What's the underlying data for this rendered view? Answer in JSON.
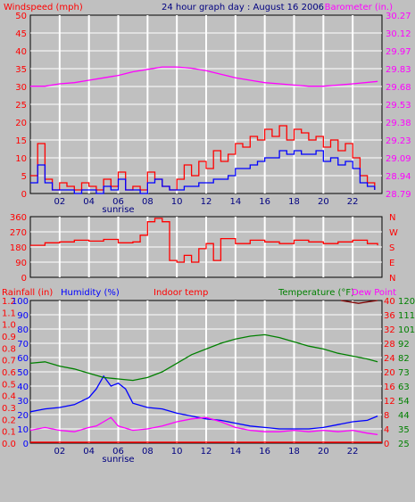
{
  "header": {
    "left_title": "Windspeed (mph)",
    "center_title": "24 hour graph day : August 16 2006",
    "right_title": "Barometer (in.)"
  },
  "colors": {
    "background": "#c0c0c0",
    "grid": "#ffffff",
    "wind": "#ff0000",
    "wind_avg": "#0000ff",
    "barometer": "#ff00ff",
    "humidity": "#0000ff",
    "indoor": "#ff00ff",
    "temperature": "#008000",
    "dewpoint": "#800000",
    "rain": "#ff0000"
  },
  "x_ticks": [
    "02",
    "04",
    "06",
    "08",
    "10",
    "12",
    "14",
    "16",
    "18",
    "20",
    "22"
  ],
  "sunrise_label": "sunrise",
  "chart_data": [
    {
      "type": "line",
      "ylim_left": [
        0,
        50
      ],
      "ylim_right": [
        28.79,
        30.27
      ],
      "y_ticks_left": [
        "50",
        "45",
        "40",
        "35",
        "30",
        "25",
        "20",
        "15",
        "10",
        "5",
        "0"
      ],
      "y_ticks_right": [
        "30.27",
        "30.12",
        "29.97",
        "29.83",
        "29.68",
        "29.53",
        "29.38",
        "29.23",
        "29.09",
        "28.94",
        "28.79"
      ],
      "series": [
        {
          "name": "Windspeed (mph)",
          "axis": "left",
          "x": [
            0,
            0.5,
            1,
            1.5,
            2,
            2.5,
            3,
            3.5,
            4,
            4.5,
            5,
            5.5,
            6,
            6.5,
            7,
            7.5,
            8,
            8.5,
            9,
            9.5,
            10,
            10.5,
            11,
            11.5,
            12,
            12.5,
            13,
            13.5,
            14,
            14.5,
            15,
            15.5,
            16,
            16.5,
            17,
            17.5,
            18,
            18.5,
            19,
            19.5,
            20,
            20.5,
            21,
            21.5,
            22,
            22.5,
            23,
            23.5
          ],
          "y": [
            5,
            14,
            4,
            1,
            3,
            2,
            1,
            3,
            2,
            1,
            4,
            2,
            6,
            1,
            2,
            1,
            6,
            4,
            2,
            1,
            4,
            8,
            5,
            9,
            7,
            12,
            9,
            11,
            14,
            13,
            16,
            15,
            18,
            16,
            19,
            15,
            18,
            17,
            15,
            16,
            13,
            15,
            12,
            14,
            10,
            5,
            3,
            1
          ]
        },
        {
          "name": "Average windspeed",
          "axis": "left",
          "x": [
            0,
            0.5,
            1,
            1.5,
            2,
            2.5,
            3,
            3.5,
            4,
            4.5,
            5,
            5.5,
            6,
            6.5,
            7,
            7.5,
            8,
            8.5,
            9,
            9.5,
            10,
            10.5,
            11,
            11.5,
            12,
            12.5,
            13,
            13.5,
            14,
            14.5,
            15,
            15.5,
            16,
            16.5,
            17,
            17.5,
            18,
            18.5,
            19,
            19.5,
            20,
            20.5,
            21,
            21.5,
            22,
            22.5,
            23,
            23.5
          ],
          "y": [
            3,
            8,
            3,
            1,
            1,
            1,
            0,
            1,
            1,
            0,
            2,
            1,
            4,
            1,
            1,
            0,
            3,
            4,
            2,
            1,
            1,
            2,
            2,
            3,
            3,
            4,
            4,
            5,
            7,
            7,
            8,
            9,
            10,
            10,
            12,
            11,
            12,
            11,
            11,
            12,
            9,
            10,
            8,
            9,
            7,
            3,
            2,
            1
          ]
        },
        {
          "name": "Barometer (in.)",
          "axis": "right",
          "x": [
            0,
            1,
            2,
            3,
            4,
            5,
            6,
            7,
            8,
            9,
            10,
            11,
            12,
            13,
            14,
            15,
            16,
            17,
            18,
            19,
            20,
            21,
            22,
            23.7
          ],
          "y": [
            29.68,
            29.68,
            29.7,
            29.71,
            29.73,
            29.75,
            29.77,
            29.8,
            29.82,
            29.84,
            29.84,
            29.83,
            29.81,
            29.78,
            29.75,
            29.73,
            29.71,
            29.7,
            29.69,
            29.68,
            29.68,
            29.69,
            29.7,
            29.72
          ]
        }
      ]
    },
    {
      "type": "line",
      "ylim": [
        0,
        360
      ],
      "y_ticks_left": [
        "360",
        "270",
        "180",
        "90",
        "0"
      ],
      "y_ticks_right": [
        "N",
        "W",
        "S",
        "E",
        "N"
      ],
      "series": [
        {
          "name": "Wind direction",
          "axis": "left",
          "x": [
            0,
            1,
            2,
            3,
            4,
            5,
            6,
            7,
            7.5,
            8,
            8.5,
            9,
            9.5,
            10,
            10.5,
            11,
            11.5,
            12,
            12.5,
            13,
            14,
            15,
            16,
            17,
            18,
            19,
            20,
            21,
            22,
            23,
            23.7
          ],
          "y": [
            190,
            205,
            210,
            220,
            215,
            225,
            205,
            210,
            250,
            330,
            350,
            330,
            100,
            90,
            130,
            90,
            170,
            200,
            100,
            230,
            200,
            220,
            210,
            200,
            220,
            210,
            200,
            210,
            220,
            200,
            190
          ]
        }
      ]
    },
    {
      "type": "line",
      "ylim_rain": [
        0,
        1.2
      ],
      "ylim_humidity": [
        0,
        100
      ],
      "y_ticks_rain": [
        "1.2",
        "1.1",
        "1.0",
        "0.9",
        "0.8",
        "0.7",
        "0.6",
        "0.5",
        "0.4",
        "0.3",
        "0.2",
        "0.1",
        "0.0"
      ],
      "y_ticks_humidity": [
        "100",
        "90",
        "80",
        "70",
        "60",
        "50",
        "40",
        "30",
        "20",
        "10",
        "0"
      ],
      "y_ticks_temp_c": [
        "40",
        "36",
        "32",
        "28",
        "24",
        "20",
        "16",
        "12",
        "8",
        "4",
        "0"
      ],
      "y_ticks_temp_f": [
        "120",
        "111",
        "101",
        "92",
        "82",
        "73",
        "63",
        "54",
        "44",
        "35",
        "25"
      ],
      "legend": [
        "Rainfall (in)",
        "Humidity (%)",
        "Indoor temp",
        "Temperature (°F)",
        "Dew Point"
      ],
      "series": [
        {
          "name": "Humidity (%)",
          "axis": "humidity",
          "x": [
            0,
            1,
            2,
            3,
            4,
            4.5,
            5,
            5.5,
            6,
            6.5,
            7,
            8,
            9,
            10,
            11,
            12,
            13,
            14,
            15,
            16,
            17,
            18,
            19,
            20,
            21,
            22,
            23,
            23.7
          ],
          "y": [
            22,
            24,
            25,
            27,
            32,
            38,
            47,
            40,
            42,
            38,
            28,
            25,
            24,
            21,
            19,
            17,
            16,
            14,
            12,
            11,
            10,
            10,
            10,
            11,
            13,
            15,
            16,
            19
          ]
        },
        {
          "name": "Indoor temp",
          "axis": "humidity",
          "x": [
            0,
            1,
            2,
            3,
            4,
            4.5,
            5,
            5.5,
            6,
            7,
            8,
            9,
            10,
            11,
            12,
            13,
            14,
            15,
            16,
            17,
            18,
            19,
            20,
            21,
            22,
            23,
            23.7
          ],
          "y": [
            9,
            11,
            9,
            8,
            11,
            12,
            15,
            18,
            12,
            9,
            10,
            12,
            15,
            17,
            18,
            15,
            11,
            9,
            8,
            8,
            9,
            8,
            9,
            8,
            9,
            7,
            6
          ]
        },
        {
          "name": "Temperature (°F)",
          "axis": "humidity",
          "x": [
            0,
            1,
            2,
            3,
            4,
            5,
            6,
            7,
            8,
            9,
            10,
            11,
            12,
            13,
            14,
            15,
            16,
            17,
            18,
            19,
            20,
            21,
            22,
            23,
            23.7
          ],
          "y": [
            56,
            57,
            54,
            52,
            49,
            46,
            45,
            44,
            46,
            50,
            56,
            62,
            66,
            70,
            73,
            75,
            76,
            74,
            71,
            68,
            66,
            63,
            61,
            59,
            57
          ]
        },
        {
          "name": "Dew Point",
          "axis": "humidity",
          "x": [
            21.2,
            21.8,
            22.4,
            23.0,
            23.7
          ],
          "y": [
            100,
            99,
            98,
            99,
            100
          ]
        }
      ]
    }
  ]
}
